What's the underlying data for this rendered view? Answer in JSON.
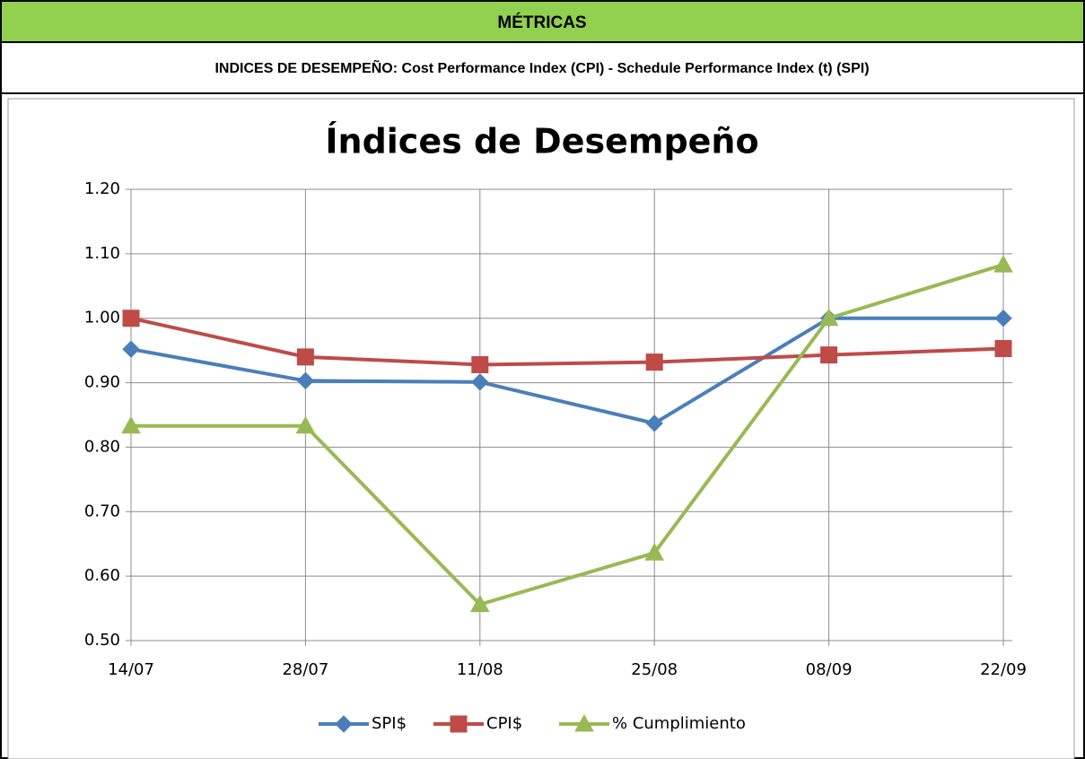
{
  "header": {
    "title": "MÉTRICAS",
    "subtitle": "INDICES DE DESEMPEÑO: Cost Performance Index (CPI) - Schedule Performance Index (t) (SPI)"
  },
  "chart_data": {
    "type": "line",
    "title": "Índices de Desempeño",
    "categories": [
      "14/07",
      "28/07",
      "11/08",
      "25/08",
      "08/09",
      "22/09"
    ],
    "series": [
      {
        "name": "SPI$",
        "color": "#4a7ebb",
        "marker": "diamond",
        "values": [
          0.952,
          0.903,
          0.901,
          0.837,
          1.0,
          1.0
        ]
      },
      {
        "name": "CPI$",
        "color": "#be4b48",
        "marker": "square",
        "values": [
          1.0,
          0.94,
          0.928,
          0.932,
          0.943,
          0.953
        ]
      },
      {
        "name": "% Cumplimiento",
        "color": "#98b954",
        "marker": "triangle",
        "values": [
          0.833,
          0.833,
          0.556,
          0.636,
          1.0,
          1.083
        ]
      }
    ],
    "ylim": [
      0.5,
      1.2
    ],
    "yticks": [
      {
        "value": 0.5,
        "label": "0.50"
      },
      {
        "value": 0.6,
        "label": "0.60"
      },
      {
        "value": 0.7,
        "label": "0.70"
      },
      {
        "value": 0.8,
        "label": "0.80"
      },
      {
        "value": 0.9,
        "label": "0.90"
      },
      {
        "value": 1.0,
        "label": "1.00"
      },
      {
        "value": 1.1,
        "label": "1.10"
      },
      {
        "value": 1.2,
        "label": "1.20"
      }
    ],
    "grid": true,
    "legend": "bottom"
  }
}
